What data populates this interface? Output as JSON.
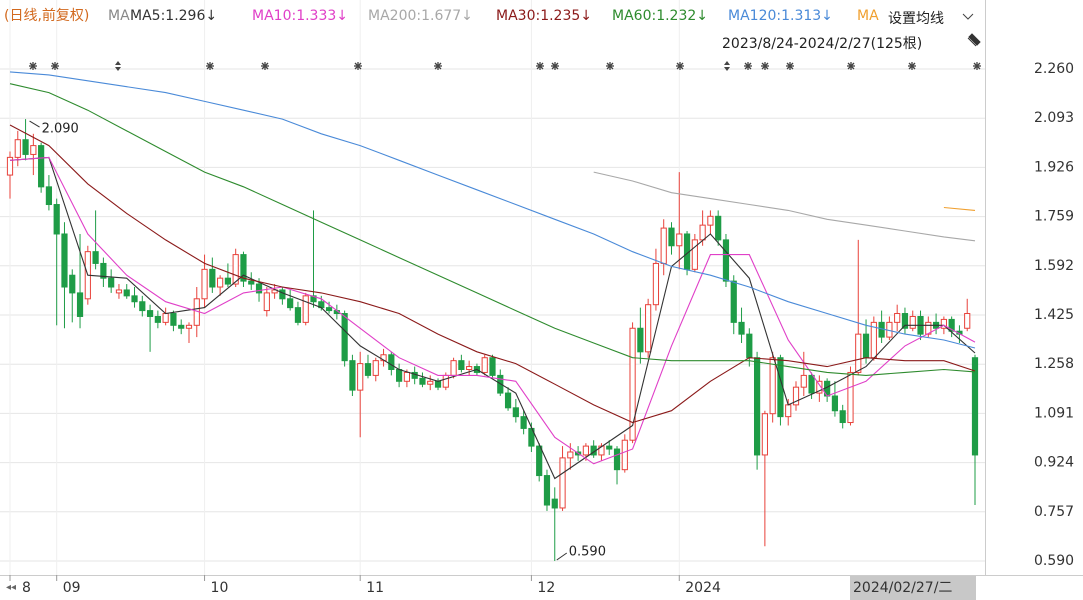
{
  "chart_data": {
    "type": "candlestick",
    "header": {
      "mode": "(日线,前复权)",
      "ma": "MA",
      "settings": "设置均线",
      "range": "2023/8/24-2024/2/27(125根)"
    },
    "ohlc": [
      [
        1.9,
        1.98,
        1.82,
        1.96
      ],
      [
        1.96,
        2.05,
        1.93,
        2.02
      ],
      [
        2.02,
        2.09,
        1.95,
        1.97
      ],
      [
        1.97,
        2.04,
        1.9,
        2.0
      ],
      [
        2.0,
        2.01,
        1.84,
        1.86
      ],
      [
        1.86,
        1.9,
        1.78,
        1.8
      ],
      [
        1.8,
        1.82,
        1.39,
        1.7
      ],
      [
        1.7,
        1.74,
        1.38,
        1.52
      ],
      [
        1.56,
        1.58,
        1.4,
        1.5
      ],
      [
        1.5,
        1.7,
        1.38,
        1.42
      ],
      [
        1.48,
        1.66,
        1.46,
        1.64
      ],
      [
        1.64,
        1.78,
        1.58,
        1.6
      ],
      [
        1.6,
        1.62,
        1.52,
        1.55
      ],
      [
        1.55,
        1.58,
        1.5,
        1.52
      ],
      [
        1.5,
        1.53,
        1.48,
        1.51
      ],
      [
        1.51,
        1.53,
        1.48,
        1.49
      ],
      [
        1.49,
        1.52,
        1.45,
        1.47
      ],
      [
        1.47,
        1.49,
        1.42,
        1.44
      ],
      [
        1.44,
        1.46,
        1.3,
        1.42
      ],
      [
        1.42,
        1.44,
        1.38,
        1.4
      ],
      [
        1.4,
        1.45,
        1.39,
        1.43
      ],
      [
        1.43,
        1.44,
        1.37,
        1.39
      ],
      [
        1.39,
        1.41,
        1.36,
        1.38
      ],
      [
        1.38,
        1.4,
        1.33,
        1.39
      ],
      [
        1.39,
        1.52,
        1.35,
        1.48
      ],
      [
        1.48,
        1.63,
        1.45,
        1.58
      ],
      [
        1.58,
        1.62,
        1.5,
        1.52
      ],
      [
        1.52,
        1.56,
        1.49,
        1.55
      ],
      [
        1.55,
        1.6,
        1.52,
        1.53
      ],
      [
        1.53,
        1.65,
        1.52,
        1.63
      ],
      [
        1.63,
        1.64,
        1.52,
        1.54
      ],
      [
        1.54,
        1.57,
        1.51,
        1.53
      ],
      [
        1.53,
        1.55,
        1.47,
        1.5
      ],
      [
        1.44,
        1.52,
        1.42,
        1.5
      ],
      [
        1.5,
        1.53,
        1.48,
        1.51
      ],
      [
        1.51,
        1.52,
        1.46,
        1.48
      ],
      [
        1.48,
        1.51,
        1.44,
        1.45
      ],
      [
        1.45,
        1.47,
        1.39,
        1.4
      ],
      [
        1.4,
        1.5,
        1.39,
        1.49
      ],
      [
        1.49,
        1.78,
        1.45,
        1.47
      ],
      [
        1.47,
        1.49,
        1.44,
        1.45
      ],
      [
        1.45,
        1.47,
        1.43,
        1.44
      ],
      [
        1.44,
        1.46,
        1.41,
        1.43
      ],
      [
        1.43,
        1.44,
        1.25,
        1.27
      ],
      [
        1.27,
        1.29,
        1.15,
        1.17
      ],
      [
        1.17,
        1.3,
        1.01,
        1.26
      ],
      [
        1.26,
        1.29,
        1.21,
        1.22
      ],
      [
        1.22,
        1.28,
        1.2,
        1.27
      ],
      [
        1.27,
        1.31,
        1.25,
        1.29
      ],
      [
        1.29,
        1.3,
        1.22,
        1.24
      ],
      [
        1.24,
        1.26,
        1.18,
        1.2
      ],
      [
        1.2,
        1.24,
        1.18,
        1.23
      ],
      [
        1.23,
        1.25,
        1.19,
        1.21
      ],
      [
        1.21,
        1.23,
        1.18,
        1.19
      ],
      [
        1.19,
        1.22,
        1.17,
        1.2
      ],
      [
        1.2,
        1.21,
        1.17,
        1.18
      ],
      [
        1.18,
        1.23,
        1.17,
        1.22
      ],
      [
        1.22,
        1.28,
        1.21,
        1.27
      ],
      [
        1.27,
        1.29,
        1.23,
        1.24
      ],
      [
        1.24,
        1.27,
        1.22,
        1.25
      ],
      [
        1.25,
        1.26,
        1.22,
        1.23
      ],
      [
        1.23,
        1.29,
        1.22,
        1.28
      ],
      [
        1.28,
        1.29,
        1.21,
        1.22
      ],
      [
        1.22,
        1.24,
        1.15,
        1.16
      ],
      [
        1.16,
        1.18,
        1.1,
        1.11
      ],
      [
        1.11,
        1.14,
        1.06,
        1.08
      ],
      [
        1.08,
        1.1,
        1.02,
        1.04
      ],
      [
        1.04,
        1.06,
        0.96,
        0.98
      ],
      [
        0.98,
        0.99,
        0.86,
        0.88
      ],
      [
        0.88,
        0.9,
        0.76,
        0.78
      ],
      [
        0.8,
        0.84,
        0.59,
        0.77
      ],
      [
        0.77,
        0.98,
        0.76,
        0.94
      ],
      [
        0.94,
        0.99,
        0.9,
        0.96
      ],
      [
        0.96,
        0.98,
        0.93,
        0.95
      ],
      [
        0.95,
        0.99,
        0.93,
        0.98
      ],
      [
        0.98,
        1.0,
        0.94,
        0.95
      ],
      [
        0.95,
        0.99,
        0.93,
        0.98
      ],
      [
        0.98,
        1.0,
        0.95,
        0.97
      ],
      [
        0.97,
        0.98,
        0.85,
        0.9
      ],
      [
        0.9,
        1.02,
        0.89,
        1.0
      ],
      [
        1.0,
        1.4,
        0.99,
        1.38
      ],
      [
        1.38,
        1.45,
        1.26,
        1.3
      ],
      [
        1.3,
        1.48,
        1.28,
        1.46
      ],
      [
        1.46,
        1.65,
        1.44,
        1.6
      ],
      [
        1.6,
        1.75,
        1.56,
        1.72
      ],
      [
        1.72,
        1.74,
        1.63,
        1.66
      ],
      [
        1.66,
        1.91,
        1.58,
        1.7
      ],
      [
        1.7,
        1.71,
        1.56,
        1.58
      ],
      [
        1.58,
        1.7,
        1.57,
        1.68
      ],
      [
        1.68,
        1.78,
        1.66,
        1.73
      ],
      [
        1.73,
        1.78,
        1.7,
        1.76
      ],
      [
        1.76,
        1.78,
        1.66,
        1.68
      ],
      [
        1.68,
        1.7,
        1.52,
        1.54
      ],
      [
        1.54,
        1.56,
        1.36,
        1.4
      ],
      [
        1.4,
        1.45,
        1.33,
        1.36
      ],
      [
        1.36,
        1.38,
        1.25,
        1.28
      ],
      [
        1.28,
        1.3,
        0.9,
        0.95
      ],
      [
        0.95,
        1.1,
        0.64,
        1.09
      ],
      [
        1.09,
        1.3,
        1.06,
        1.28
      ],
      [
        1.28,
        1.29,
        1.05,
        1.08
      ],
      [
        1.08,
        1.14,
        1.05,
        1.12
      ],
      [
        1.12,
        1.2,
        1.1,
        1.18
      ],
      [
        1.18,
        1.3,
        1.15,
        1.22
      ],
      [
        1.22,
        1.23,
        1.14,
        1.16
      ],
      [
        1.16,
        1.22,
        1.13,
        1.2
      ],
      [
        1.2,
        1.21,
        1.13,
        1.15
      ],
      [
        1.15,
        1.2,
        1.08,
        1.1
      ],
      [
        1.1,
        1.12,
        1.04,
        1.06
      ],
      [
        1.06,
        1.25,
        1.05,
        1.23
      ],
      [
        1.23,
        1.68,
        1.22,
        1.36
      ],
      [
        1.36,
        1.41,
        1.26,
        1.28
      ],
      [
        1.28,
        1.42,
        1.27,
        1.4
      ],
      [
        1.4,
        1.44,
        1.33,
        1.35
      ],
      [
        1.35,
        1.42,
        1.34,
        1.4
      ],
      [
        1.4,
        1.46,
        1.37,
        1.43
      ],
      [
        1.43,
        1.45,
        1.36,
        1.38
      ],
      [
        1.38,
        1.44,
        1.37,
        1.42
      ],
      [
        1.42,
        1.44,
        1.34,
        1.36
      ],
      [
        1.36,
        1.42,
        1.35,
        1.4
      ],
      [
        1.4,
        1.43,
        1.36,
        1.38
      ],
      [
        1.38,
        1.42,
        1.36,
        1.41
      ],
      [
        1.41,
        1.42,
        1.35,
        1.37
      ],
      [
        1.37,
        1.39,
        1.33,
        1.36
      ],
      [
        1.38,
        1.48,
        1.37,
        1.43
      ],
      [
        1.28,
        1.29,
        0.78,
        0.95
      ]
    ],
    "up_color": "#e8413a",
    "down_color": "#1e9c46",
    "high_label": "2.090",
    "low_label": "0.590",
    "ma_x": [
      0,
      5,
      10,
      15,
      20,
      25,
      30,
      35,
      40,
      45,
      50,
      55,
      60,
      65,
      70,
      75,
      80,
      85,
      90,
      95,
      100,
      105,
      110,
      115,
      120,
      124
    ],
    "series": [
      {
        "name": "MA5:1.296↓",
        "color": "#333333",
        "values": [
          1.95,
          1.96,
          1.56,
          1.55,
          1.43,
          1.45,
          1.56,
          1.5,
          1.45,
          1.32,
          1.24,
          1.2,
          1.24,
          1.16,
          0.87,
          0.96,
          1.05,
          1.59,
          1.7,
          1.55,
          1.12,
          1.18,
          1.25,
          1.39,
          1.39,
          1.296
        ]
      },
      {
        "name": "MA10:1.333↓",
        "color": "#e040c8",
        "values": [
          1.95,
          1.96,
          1.7,
          1.56,
          1.47,
          1.43,
          1.5,
          1.52,
          1.48,
          1.38,
          1.28,
          1.22,
          1.22,
          1.2,
          1.01,
          0.92,
          0.97,
          1.32,
          1.63,
          1.63,
          1.34,
          1.15,
          1.2,
          1.32,
          1.39,
          1.333
        ]
      },
      {
        "name": "MA200:1.677↓",
        "color": "#a8a8a8",
        "values": [
          null,
          null,
          null,
          null,
          null,
          null,
          null,
          null,
          null,
          null,
          null,
          null,
          null,
          null,
          null,
          1.91,
          1.88,
          1.84,
          1.82,
          1.8,
          1.78,
          1.75,
          1.73,
          1.71,
          1.69,
          1.677
        ]
      },
      {
        "name": "MA30:1.235↓",
        "color": "#8b1a1a",
        "values": [
          2.07,
          2.0,
          1.87,
          1.77,
          1.68,
          1.6,
          1.55,
          1.52,
          1.5,
          1.47,
          1.43,
          1.36,
          1.3,
          1.26,
          1.19,
          1.12,
          1.06,
          1.1,
          1.2,
          1.28,
          1.27,
          1.25,
          1.28,
          1.27,
          1.27,
          1.235
        ]
      },
      {
        "name": "MA60:1.232↓",
        "color": "#2e8b2e",
        "values": [
          2.21,
          2.18,
          2.12,
          2.05,
          1.98,
          1.91,
          1.86,
          1.8,
          1.74,
          1.68,
          1.62,
          1.56,
          1.5,
          1.44,
          1.38,
          1.33,
          1.28,
          1.27,
          1.27,
          1.27,
          1.25,
          1.23,
          1.22,
          1.23,
          1.24,
          1.232
        ]
      },
      {
        "name": "MA120:1.313↓",
        "color": "#4a8ad8",
        "values": [
          2.25,
          2.24,
          2.22,
          2.2,
          2.18,
          2.15,
          2.12,
          2.09,
          2.04,
          2.0,
          1.95,
          1.9,
          1.85,
          1.8,
          1.75,
          1.7,
          1.64,
          1.59,
          1.56,
          1.52,
          1.47,
          1.43,
          1.39,
          1.36,
          1.34,
          1.313
        ]
      },
      {
        "name": "MA",
        "color": "#f0a030",
        "values": [
          null,
          null,
          null,
          null,
          null,
          null,
          null,
          null,
          null,
          null,
          null,
          null,
          null,
          null,
          null,
          null,
          null,
          null,
          null,
          null,
          null,
          null,
          null,
          null,
          1.79,
          1.78
        ]
      }
    ],
    "ylim": [
      0.59,
      2.26
    ],
    "yticks": [
      {
        "value": 0.59,
        "label": "0.590"
      },
      {
        "value": 0.757,
        "label": "0.757"
      },
      {
        "value": 0.924,
        "label": "0.924"
      },
      {
        "value": 1.091,
        "label": "1.091"
      },
      {
        "value": 1.258,
        "label": "1.258"
      },
      {
        "value": 1.425,
        "label": "1.425"
      },
      {
        "value": 1.592,
        "label": "1.592"
      },
      {
        "value": 1.759,
        "label": "1.759"
      },
      {
        "value": 1.926,
        "label": "1.926"
      },
      {
        "value": 2.093,
        "label": "2.093"
      },
      {
        "value": 2.26,
        "label": "2.260"
      }
    ],
    "xlim": [
      0,
      124
    ],
    "xticks": [
      {
        "value": 0,
        "label": "8"
      },
      {
        "value": 6,
        "label": "09"
      },
      {
        "value": 25,
        "label": "10"
      },
      {
        "value": 45,
        "label": "11"
      },
      {
        "value": 67,
        "label": "12"
      },
      {
        "value": 86,
        "label": "2024"
      }
    ],
    "cursor_label": "2024/02/27/二",
    "grid": true
  }
}
